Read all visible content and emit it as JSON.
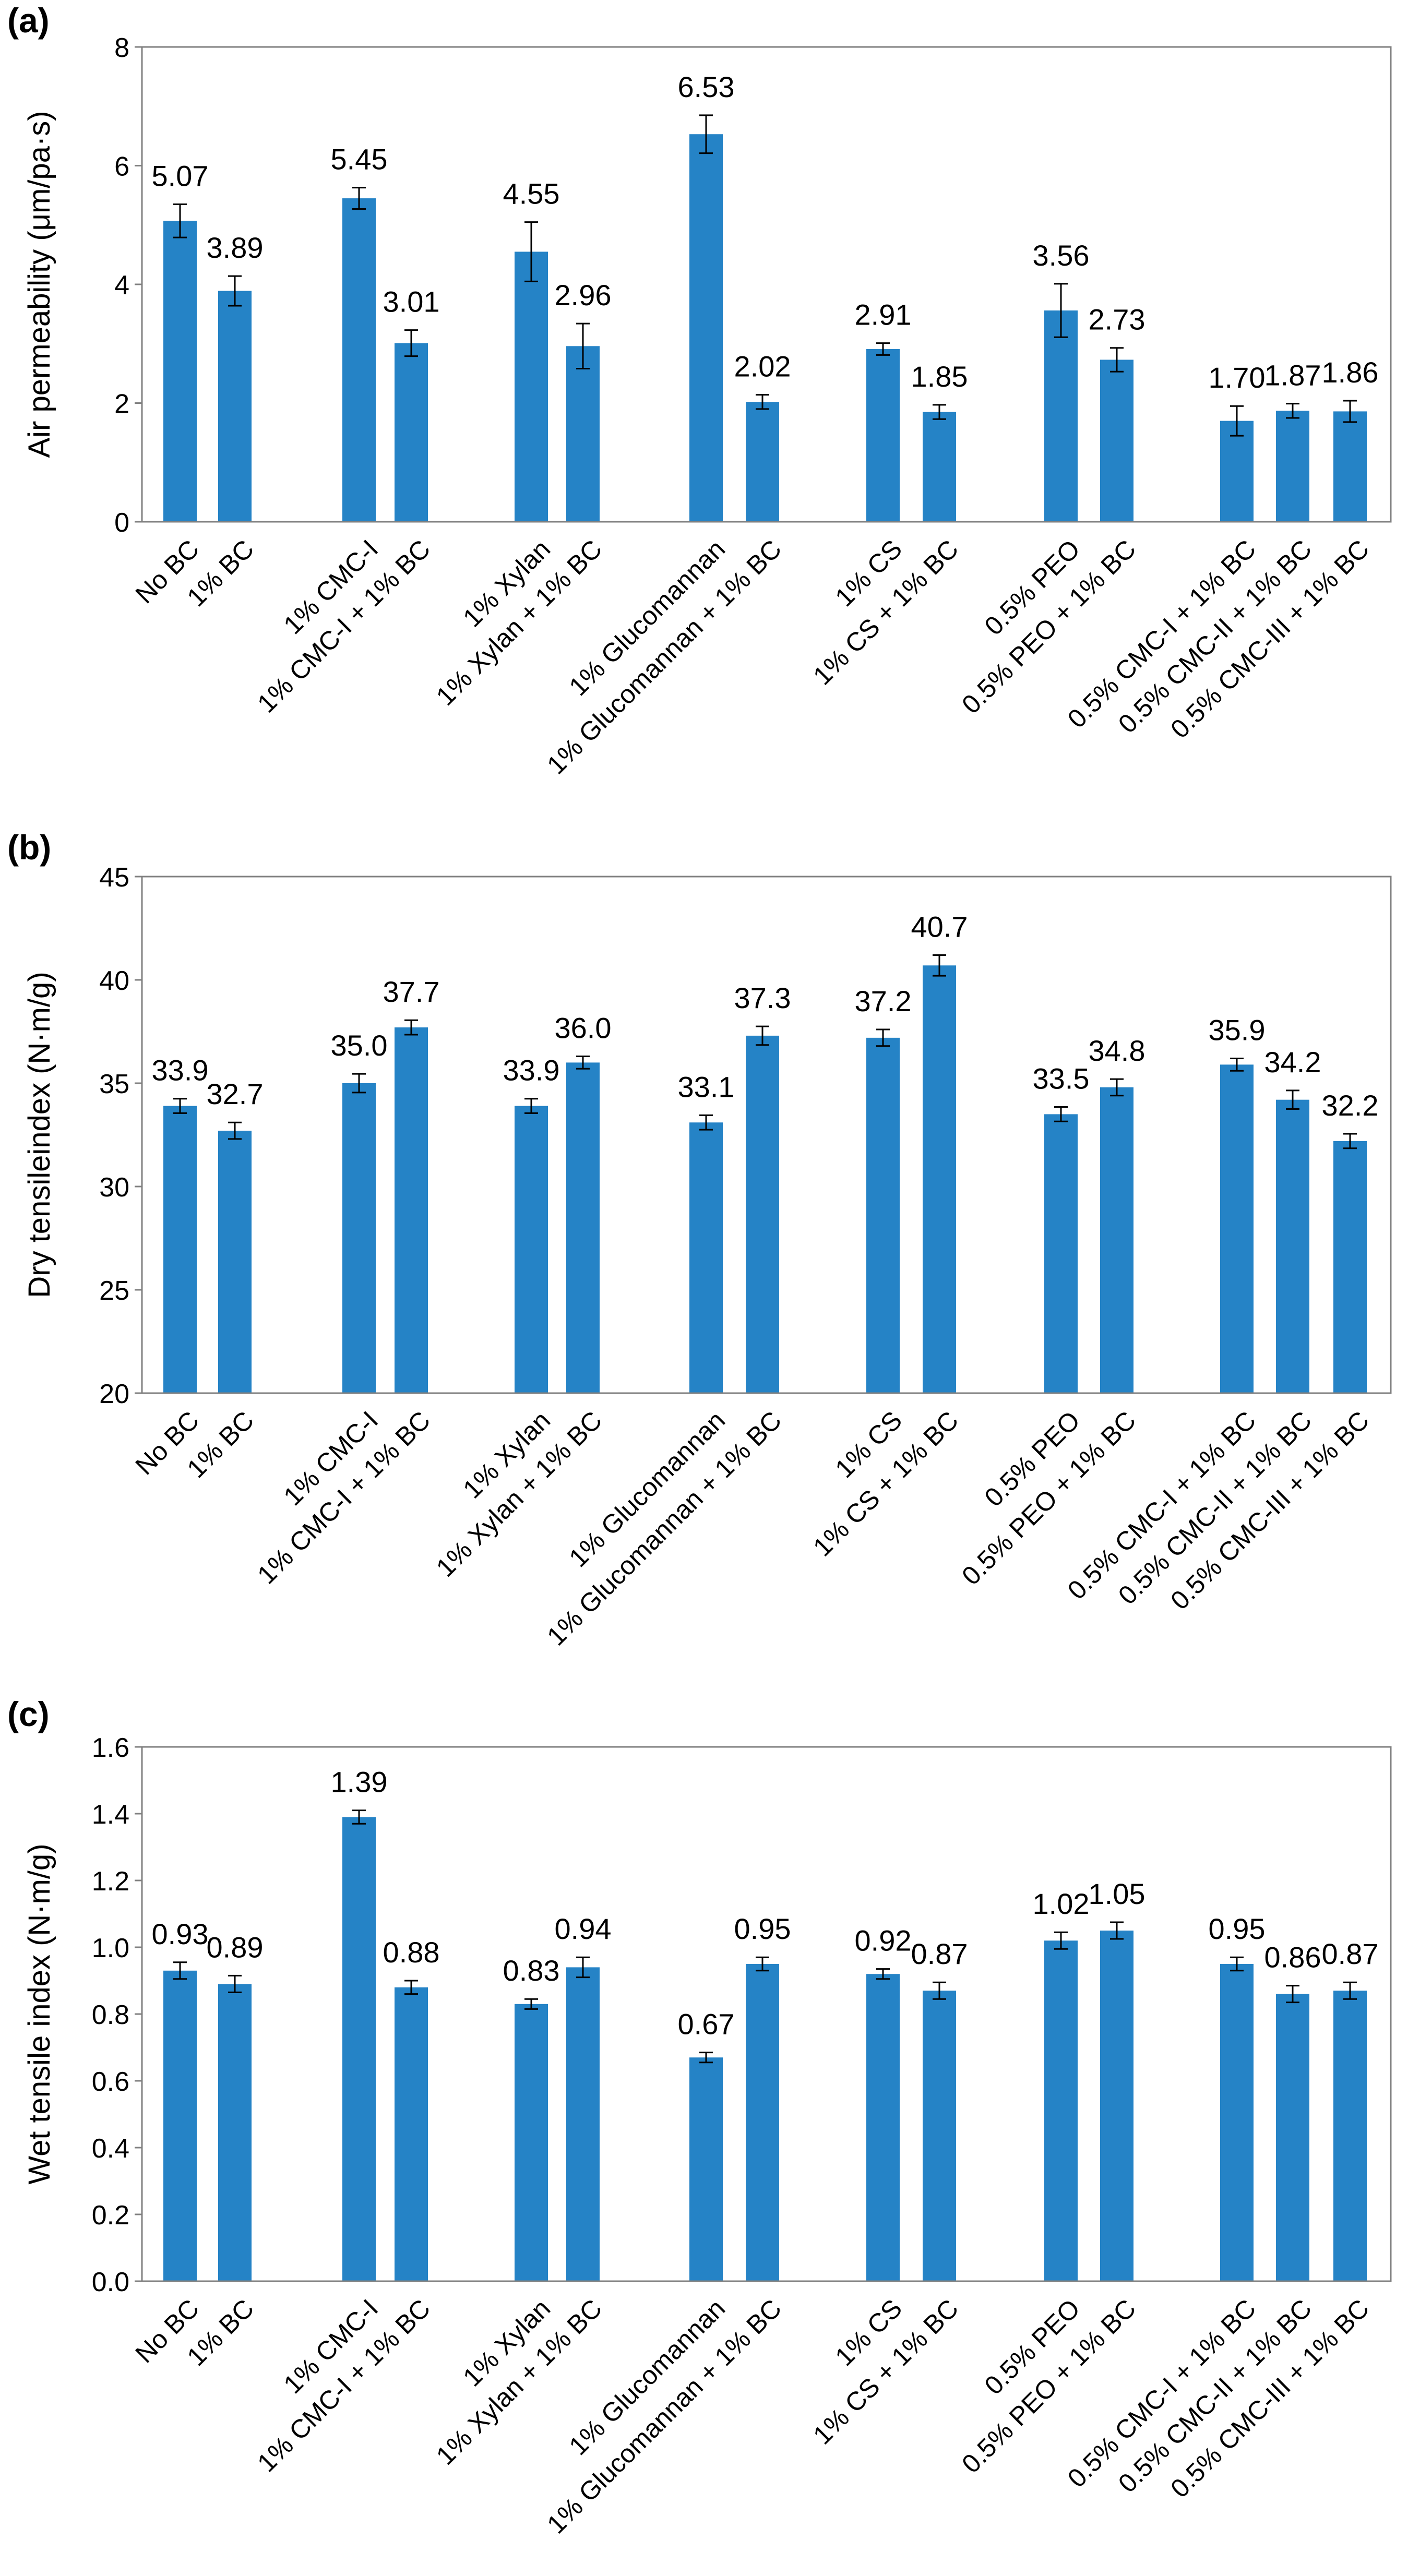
{
  "bar_color": "#2583c6",
  "axis_color": "#808080",
  "chart_data": [
    {
      "type": "bar",
      "panel_label": "(a)",
      "title": "",
      "xlabel": "",
      "ylabel": "Air permeability (μm/pa·s)",
      "ylim": [
        0,
        8
      ],
      "yticks": [
        "0",
        "2",
        "4",
        "6",
        "8"
      ],
      "grid": false,
      "categories": [
        "No BC",
        "1% BC",
        "1% CMC-I",
        "1% CMC-I + 1% BC",
        "1% Xylan",
        "1% Xylan + 1% BC",
        "1% Glucomannan",
        "1% Glucomannan + 1% BC",
        "1% CS",
        "1% CS + 1% BC",
        "0.5% PEO",
        "0.5% PEO + 1% BC",
        "0.5% CMC-I + 1% BC",
        "0.5% CMC-II + 1% BC",
        "0.5% CMC-III + 1% BC"
      ],
      "values": [
        5.07,
        3.89,
        5.45,
        3.01,
        4.55,
        2.96,
        6.53,
        2.02,
        2.91,
        1.85,
        3.56,
        2.73,
        1.7,
        1.87,
        1.86
      ],
      "errors": [
        0.28,
        0.25,
        0.18,
        0.22,
        0.5,
        0.38,
        0.32,
        0.12,
        0.1,
        0.12,
        0.45,
        0.2,
        0.25,
        0.12,
        0.18
      ],
      "data_labels": [
        "5.07",
        "3.89",
        "5.45",
        "3.01",
        "4.55",
        "2.96",
        "6.53",
        "2.02",
        "2.91",
        "1.85",
        "3.56",
        "2.73",
        "1.70",
        "1.87",
        "1.86"
      ]
    },
    {
      "type": "bar",
      "panel_label": "(b)",
      "title": "",
      "xlabel": "",
      "ylabel": "Dry tensileindex (N·m/g)",
      "ylim": [
        20,
        45
      ],
      "yticks": [
        "20",
        "25",
        "30",
        "35",
        "40",
        "45"
      ],
      "grid": false,
      "categories": [
        "No BC",
        "1% BC",
        "1% CMC-I",
        "1% CMC-I + 1% BC",
        "1% Xylan",
        "1% Xylan + 1% BC",
        "1% Glucomannan",
        "1% Glucomannan + 1% BC",
        "1% CS",
        "1% CS + 1% BC",
        "0.5% PEO",
        "0.5% PEO + 1% BC",
        "0.5% CMC-I + 1% BC",
        "0.5% CMC-II + 1% BC",
        "0.5% CMC-III + 1% BC"
      ],
      "values": [
        33.9,
        32.7,
        35.0,
        37.7,
        33.9,
        36.0,
        33.1,
        37.3,
        37.2,
        40.7,
        33.5,
        34.8,
        35.9,
        34.2,
        32.2
      ],
      "errors": [
        0.35,
        0.4,
        0.45,
        0.35,
        0.35,
        0.3,
        0.35,
        0.45,
        0.4,
        0.5,
        0.35,
        0.4,
        0.3,
        0.45,
        0.35
      ],
      "data_labels": [
        "33.9",
        "32.7",
        "35.0",
        "37.7",
        "33.9",
        "36.0",
        "33.1",
        "37.3",
        "37.2",
        "40.7",
        "33.5",
        "34.8",
        "35.9",
        "34.2",
        "32.2"
      ]
    },
    {
      "type": "bar",
      "panel_label": "(c)",
      "title": "",
      "xlabel": "",
      "ylabel": "Wet tensile index (N·m/g)",
      "ylim": [
        0,
        1.6
      ],
      "yticks": [
        "0.0",
        "0.2",
        "0.4",
        "0.6",
        "0.8",
        "1.0",
        "1.2",
        "1.4",
        "1.6"
      ],
      "grid": false,
      "categories": [
        "No BC",
        "1% BC",
        "1% CMC-I",
        "1% CMC-I + 1% BC",
        "1% Xylan",
        "1% Xylan + 1% BC",
        "1% Glucomannan",
        "1% Glucomannan + 1% BC",
        "1% CS",
        "1% CS + 1% BC",
        "0.5% PEO",
        "0.5% PEO + 1% BC",
        "0.5% CMC-I + 1% BC",
        "0.5% CMC-II + 1% BC",
        "0.5% CMC-III + 1% BC"
      ],
      "values": [
        0.93,
        0.89,
        1.39,
        0.88,
        0.83,
        0.94,
        0.67,
        0.95,
        0.92,
        0.87,
        1.02,
        1.05,
        0.95,
        0.86,
        0.87
      ],
      "errors": [
        0.025,
        0.025,
        0.02,
        0.02,
        0.015,
        0.03,
        0.015,
        0.02,
        0.015,
        0.025,
        0.025,
        0.025,
        0.02,
        0.025,
        0.025
      ],
      "data_labels": [
        "0.93",
        "0.89",
        "1.39",
        "0.88",
        "0.83",
        "0.94",
        "0.67",
        "0.95",
        "0.92",
        "0.87",
        "1.02",
        "1.05",
        "0.95",
        "0.86",
        "0.87"
      ]
    }
  ]
}
